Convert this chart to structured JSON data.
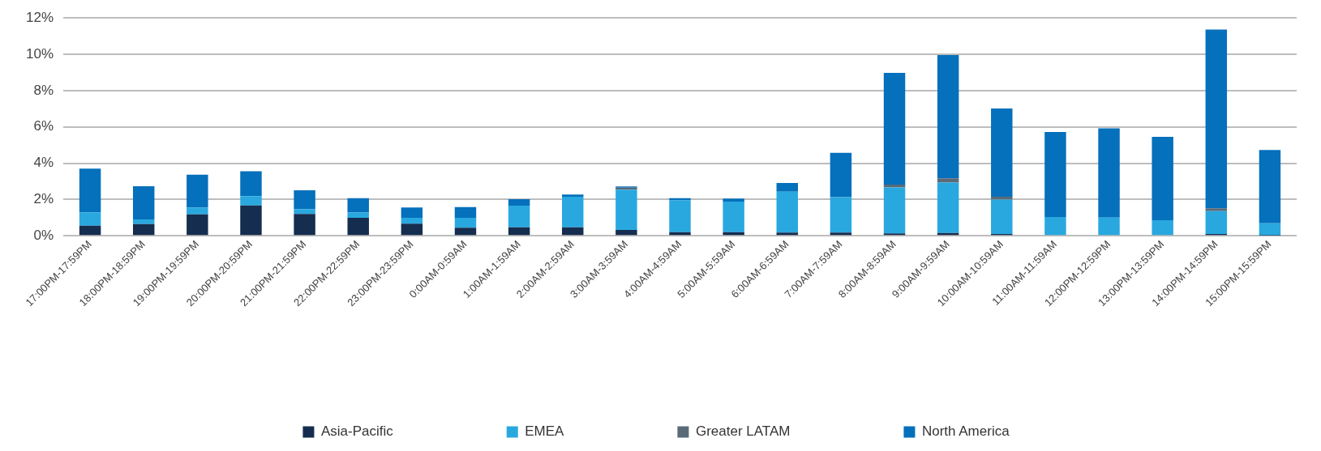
{
  "chart_data": {
    "type": "bar",
    "stacked": true,
    "grid": "y",
    "legend": "bottom",
    "categories": [
      "17:00PM-17:59PM",
      "18:00PM-18:59PM",
      "19:00PM-19:59PM",
      "20:00PM-20:59PM",
      "21:00PM-21:59PM",
      "22:00PM-22:59PM",
      "23:00PM-23:59PM",
      "0:00AM-0:59AM",
      "1:00AM-1:59AM",
      "2:00AM-2:59AM",
      "3:00AM-3:59AM",
      "4:00AM-4:59AM",
      "5:00AM-5:59AM",
      "6:00AM-6:59AM",
      "7:00AM-7:59AM",
      "8:00AM-8:59AM",
      "9:00AM-9:59AM",
      "10:00AM-10:59AM",
      "11:00AM-11:59AM",
      "12:00PM-12:59PM",
      "13:00PM-13:59PM",
      "14:00PM-14:59PM",
      "15:00PM-15:59PM"
    ],
    "series": [
      {
        "name": "Asia-Pacific",
        "color": "#152d4f",
        "values": [
          0.56,
          0.65,
          1.18,
          1.68,
          1.21,
          1.0,
          0.67,
          0.45,
          0.47,
          0.47,
          0.33,
          0.2,
          0.2,
          0.18,
          0.18,
          0.14,
          0.16,
          0.1,
          0.05,
          0.05,
          0.05,
          0.1,
          0.03
        ]
      },
      {
        "name": "EMEA",
        "color": "#29a8e0",
        "values": [
          0.74,
          0.26,
          0.38,
          0.51,
          0.27,
          0.28,
          0.33,
          0.55,
          1.19,
          1.68,
          2.21,
          1.75,
          1.69,
          2.25,
          1.95,
          2.53,
          2.78,
          1.9,
          0.99,
          0.96,
          0.81,
          1.26,
          0.67
        ]
      },
      {
        "name": "Greater LATAM",
        "color": "#5a6b78",
        "values": [
          null,
          null,
          null,
          null,
          null,
          null,
          null,
          null,
          null,
          null,
          0.12,
          null,
          null,
          null,
          null,
          0.15,
          0.23,
          0.16,
          null,
          null,
          null,
          0.16,
          null
        ]
      },
      {
        "name": "North America",
        "color": "#0570bb",
        "values": [
          2.4,
          1.82,
          1.81,
          1.37,
          1.03,
          0.8,
          0.56,
          0.59,
          0.36,
          0.13,
          0.06,
          0.13,
          0.16,
          0.48,
          2.44,
          6.16,
          6.79,
          4.86,
          4.68,
          4.91,
          4.59,
          9.84,
          4.03
        ]
      }
    ],
    "ylim": [
      0,
      12
    ],
    "yticks": [
      {
        "value": 0,
        "label": "0%"
      },
      {
        "value": 2,
        "label": "2%"
      },
      {
        "value": 4,
        "label": "4%"
      },
      {
        "value": 6,
        "label": "6%"
      },
      {
        "value": 8,
        "label": "8%"
      },
      {
        "value": 10,
        "label": "10%"
      },
      {
        "value": 12,
        "label": "12%"
      }
    ]
  }
}
